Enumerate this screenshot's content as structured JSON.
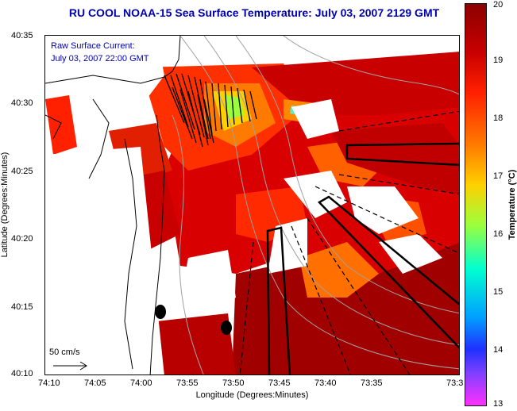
{
  "title": "RU COOL  NOAA-15  Sea Surface Temperature:  July 03, 2007 2129 GMT",
  "inset": {
    "line1": "Raw Surface Current:",
    "line2": "July 03, 2007 22:00 GMT"
  },
  "scale_label": "50 cm/s",
  "axes": {
    "xlabel": "Longitude (Degrees:Minutes)",
    "ylabel": "Latitude (Degrees:Minutes)",
    "xticks": [
      "74:10",
      "74:05",
      "74:00",
      "73:55",
      "73:50",
      "73:45",
      "73:40",
      "73:35",
      "73:3"
    ],
    "yticks": [
      "40:35",
      "40:30",
      "40:25",
      "40:20",
      "40:15",
      "40:10"
    ]
  },
  "colorbar": {
    "label": "Temperature (°C)",
    "ticks": [
      "20",
      "19",
      "18",
      "17",
      "16",
      "15",
      "14",
      "13"
    ],
    "colors": {
      "max": "#8b0000",
      "mid": "#ffd000",
      "min": "#ff30ff"
    }
  }
}
